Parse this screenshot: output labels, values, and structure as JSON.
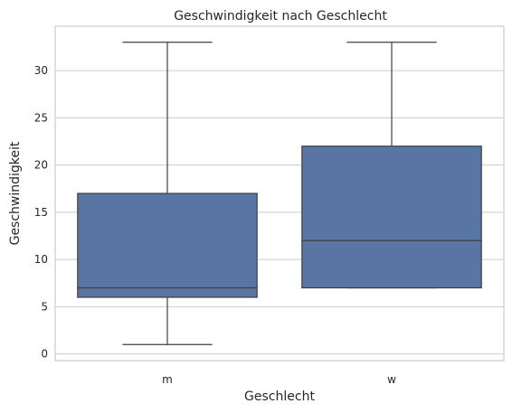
{
  "chart_data": {
    "type": "box",
    "title": "Geschwindigkeit nach Geschlecht",
    "xlabel": "Geschlecht",
    "ylabel": "Geschwindigkeit",
    "categories": [
      "m",
      "w"
    ],
    "boxes": [
      {
        "category": "m",
        "min": 1,
        "q1": 6,
        "median": 7,
        "q3": 17,
        "max": 33
      },
      {
        "category": "w",
        "min": 7,
        "q1": 7,
        "median": 12,
        "q3": 22,
        "max": 33
      }
    ],
    "ylim": [
      -0.7,
      34.7
    ],
    "yticks": [
      0,
      5,
      10,
      15,
      20,
      25,
      30
    ],
    "grid": true,
    "legend": false,
    "box_color": "#5975a4",
    "line_color": "#3f3f3f",
    "grid_color": "#cccccc"
  }
}
